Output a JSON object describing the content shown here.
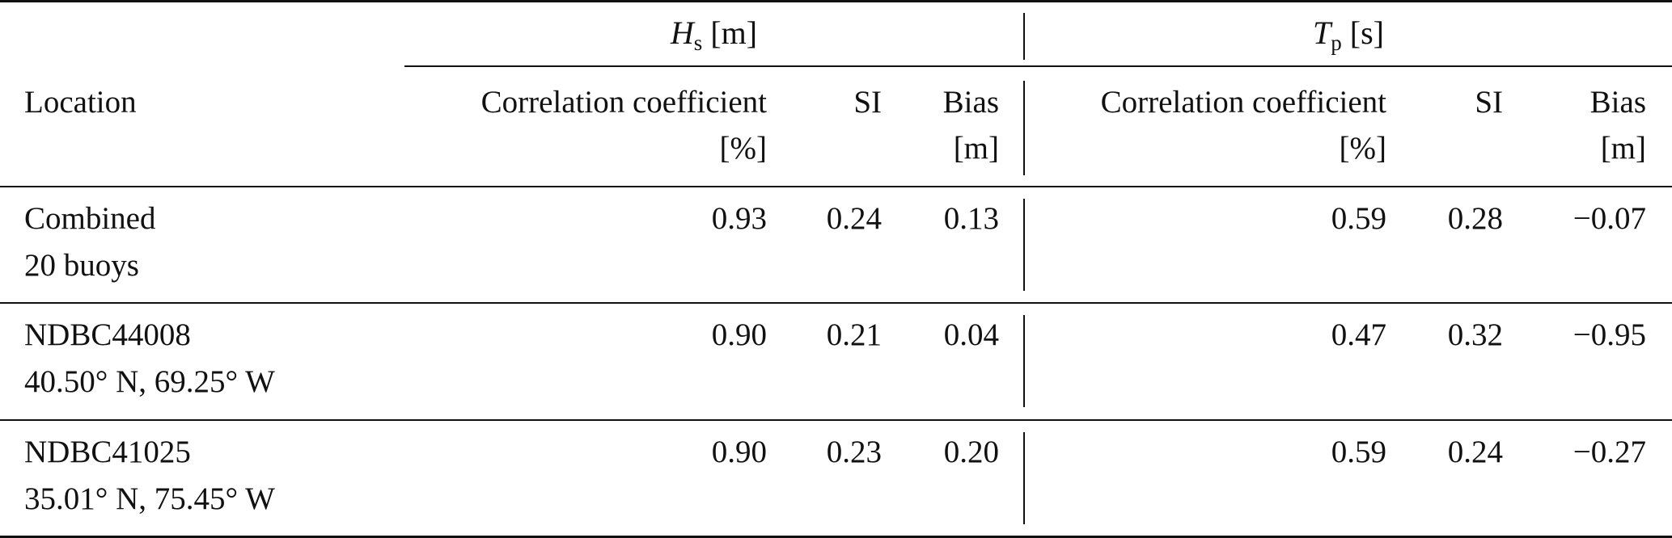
{
  "table": {
    "group_headers": {
      "hs": {
        "symbol": "H",
        "subscript": "s",
        "unit": "[m]"
      },
      "tp": {
        "symbol": "T",
        "subscript": "p",
        "unit": "[s]"
      }
    },
    "column_headers": {
      "location": "Location",
      "hs_corr_line1": "Correlation coefficient",
      "hs_corr_line2": "[%]",
      "hs_si": "SI",
      "hs_bias_line1": "Bias",
      "hs_bias_line2": "[m]",
      "tp_corr_line1": "Correlation coefficient",
      "tp_corr_line2": "[%]",
      "tp_si": "SI",
      "tp_bias_line1": "Bias",
      "tp_bias_line2": "[m]"
    },
    "rows": [
      {
        "location_line1": "Combined",
        "location_line2": "20 buoys",
        "hs_corr": "0.93",
        "hs_si": "0.24",
        "hs_bias": "0.13",
        "tp_corr": "0.59",
        "tp_si": "0.28",
        "tp_bias": "−0.07"
      },
      {
        "location_line1": "NDBC44008",
        "location_line2": "40.50° N, 69.25° W",
        "hs_corr": "0.90",
        "hs_si": "0.21",
        "hs_bias": "0.04",
        "tp_corr": "0.47",
        "tp_si": "0.32",
        "tp_bias": "−0.95"
      },
      {
        "location_line1": "NDBC41025",
        "location_line2": "35.01° N, 75.45° W",
        "hs_corr": "0.90",
        "hs_si": "0.23",
        "hs_bias": "0.20",
        "tp_corr": "0.59",
        "tp_si": "0.24",
        "tp_bias": "−0.27"
      }
    ]
  }
}
